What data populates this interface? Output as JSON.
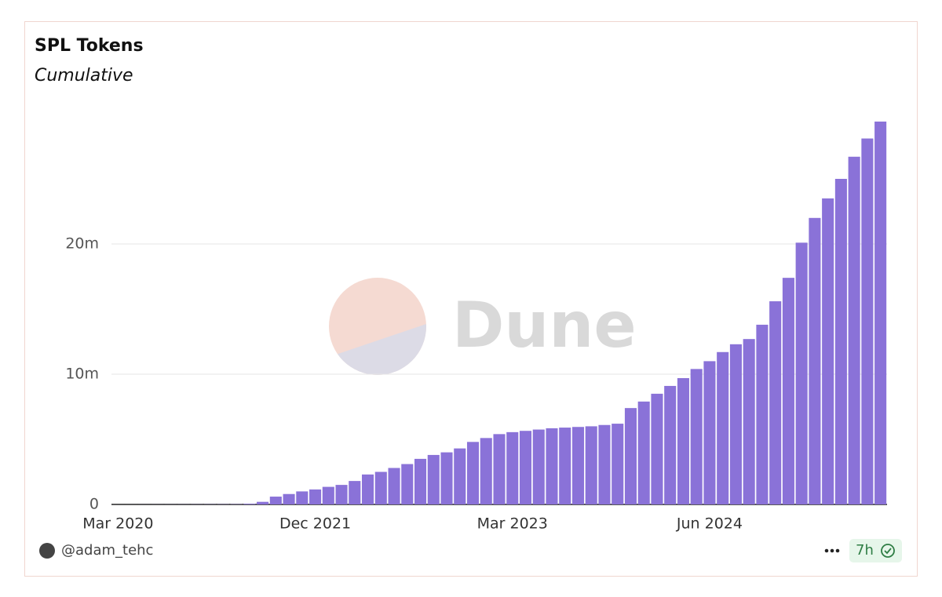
{
  "chart_data": {
    "type": "bar",
    "title": "SPL Tokens",
    "subtitle": "Cumulative",
    "categories": [
      "Mar 2020",
      null,
      null,
      null,
      null,
      null,
      null,
      null,
      null,
      null,
      null,
      null,
      null,
      null,
      null,
      "Dec 2021",
      null,
      null,
      null,
      null,
      null,
      null,
      null,
      null,
      null,
      null,
      null,
      null,
      null,
      null,
      "Mar 2023",
      null,
      null,
      null,
      null,
      null,
      null,
      null,
      null,
      null,
      null,
      null,
      null,
      null,
      null,
      "Jun 2024",
      null,
      null,
      null,
      null,
      null,
      null,
      null,
      null,
      null,
      null,
      null,
      null,
      null
    ],
    "values": [
      1000,
      2000,
      3000,
      4000,
      5000,
      7000,
      9000,
      12000,
      15000,
      20000,
      50000,
      200000,
      600000,
      800000,
      1000000,
      1150000,
      1350000,
      1500000,
      1800000,
      2300000,
      2500000,
      2800000,
      3100000,
      3500000,
      3800000,
      4000000,
      4300000,
      4800000,
      5100000,
      5400000,
      5550000,
      5650000,
      5750000,
      5850000,
      5900000,
      5950000,
      6000000,
      6100000,
      6200000,
      7400000,
      7900000,
      8500000,
      9100000,
      9700000,
      10400000,
      11000000,
      11700000,
      12300000,
      12700000,
      13800000,
      15600000,
      17400000,
      20100000,
      22000000,
      23500000,
      25000000,
      26700000,
      28100000,
      29400000
    ],
    "color": "#8a72d8",
    "ylim": [
      0,
      30000000
    ],
    "yticks": [
      0,
      {
        "value": 10000000,
        "label": "10m"
      },
      {
        "value": 20000000,
        "label": "20m"
      }
    ],
    "grid": true,
    "watermark": "Dune"
  },
  "footer": {
    "author": "@adam_tehc",
    "age": "7h"
  }
}
